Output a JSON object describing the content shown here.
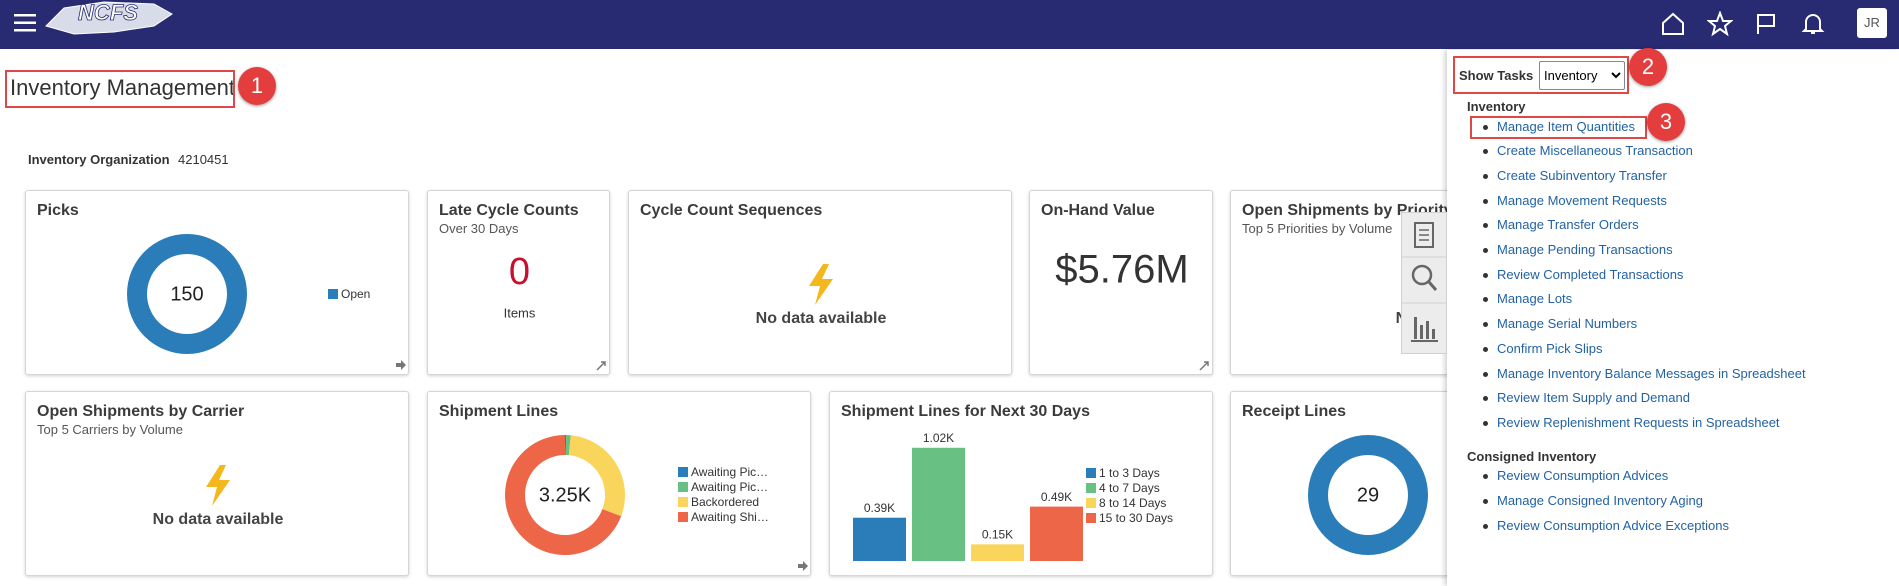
{
  "header": {
    "logo": "NCFS",
    "avatar": "JR"
  },
  "page": {
    "title": "Inventory Management",
    "organization_label": "Inventory Organization",
    "organization_value": "4210451"
  },
  "callouts": [
    1,
    2,
    3
  ],
  "tiles": [
    {
      "kind": "donut",
      "title": "Picks",
      "center": 150,
      "segments": [
        {
          "name": "Open",
          "color": "#2a7db8",
          "value": 150
        }
      ]
    },
    {
      "kind": "kpi",
      "title": "Late Cycle Counts",
      "subtitle": "Over 30 Days",
      "value": 0,
      "unit": "Items",
      "color": "#c8102e"
    },
    {
      "kind": "nodata",
      "title": "Cycle Count Sequences",
      "message": "No data available"
    },
    {
      "kind": "kpi",
      "title": "On-Hand Value",
      "value": "$5.76M",
      "color": "#333333"
    },
    {
      "kind": "nodata",
      "title": "Open Shipments by Priority",
      "subtitle": "Top 5 Priorities by Volume",
      "message": "No data available"
    },
    {
      "kind": "nodata",
      "title": "Open Shipments by Carrier",
      "subtitle": "Top 5 Carriers by Volume",
      "message": "No data available"
    },
    {
      "kind": "donut",
      "title": "Shipment Lines",
      "center": "3.25K",
      "segments": [
        {
          "name": "Awaiting Pic…",
          "color": "#2a7db8",
          "value": 0.01
        },
        {
          "name": "Awaiting Pic…",
          "color": "#68c182",
          "value": 0.04
        },
        {
          "name": "Backordered",
          "color": "#fad55c",
          "value": 0.95
        },
        {
          "name": "Awaiting Shi…",
          "color": "#ed6647",
          "value": 2.25
        }
      ]
    },
    {
      "kind": "bar",
      "title": "Shipment Lines for Next 30 Days",
      "categories": [
        "1 to 3 Days",
        "4 to 7 Days",
        "8 to 14 Days",
        "15 to 30 Days"
      ],
      "colors": [
        "#2a7db8",
        "#68c182",
        "#fad55c",
        "#ed6647"
      ],
      "values": [
        0.39,
        1.02,
        0.15,
        0.49
      ],
      "value_labels": [
        "0.39K",
        "1.02K",
        "0.15K",
        "0.49K"
      ]
    },
    {
      "kind": "donut",
      "title": "Receipt Lines",
      "center": 29,
      "segments": [
        {
          "color": "#2a7db8",
          "value": 29
        }
      ]
    }
  ],
  "tasks": {
    "label": "Show Tasks",
    "selected": "Inventory",
    "sections": [
      {
        "heading": "Inventory",
        "items": [
          "Manage Item Quantities",
          "Create Miscellaneous Transaction",
          "Create Subinventory Transfer",
          "Manage Movement Requests",
          "Manage Transfer Orders",
          "Manage Pending Transactions",
          "Review Completed Transactions",
          "Manage Lots",
          "Manage Serial Numbers",
          "Confirm Pick Slips",
          "Manage Inventory Balance Messages in Spreadsheet",
          "Review Item Supply and Demand",
          "Review Replenishment Requests in Spreadsheet"
        ]
      },
      {
        "heading": "Consigned Inventory",
        "items": [
          "Review Consumption Advices",
          "Manage Consigned Inventory Aging",
          "Review Consumption Advice Exceptions"
        ]
      }
    ]
  }
}
